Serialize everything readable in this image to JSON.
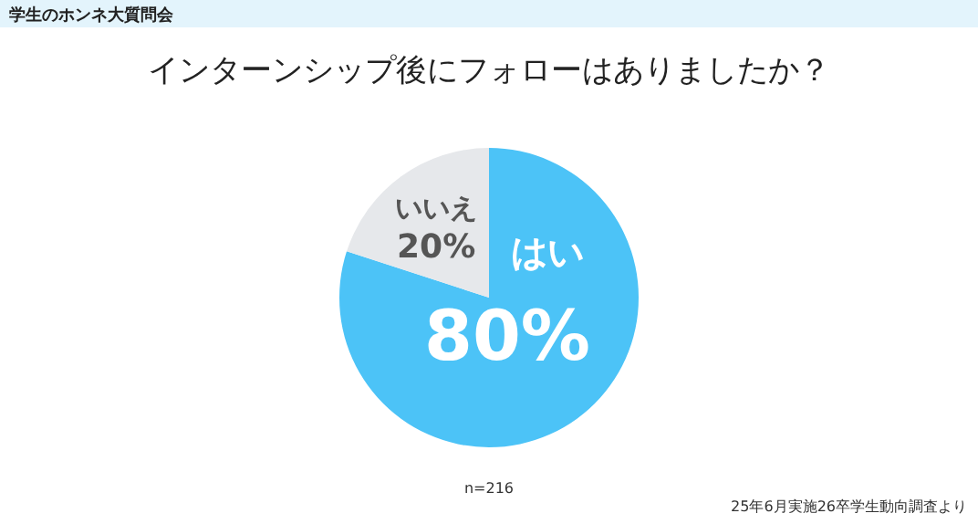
{
  "chart_data": {
    "type": "pie",
    "title": "インターンシップ後にフォローはありましたか？",
    "subtitle": "学生のホンネ大質問会",
    "categories": [
      "はい",
      "いいえ"
    ],
    "values": [
      80,
      20
    ],
    "colors": [
      "#4cc3f7",
      "#e6e8eb"
    ],
    "value_labels": [
      "80%",
      "20%"
    ],
    "annotations": [
      "n=216",
      "25年6月実施26卒学生動向調査より"
    ]
  }
}
